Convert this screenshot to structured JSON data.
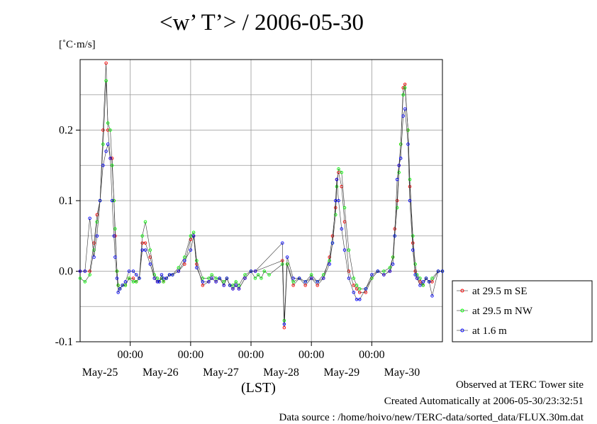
{
  "title": "<w’ T’> / 2006-05-30",
  "unit_label": "[˚C·m/s]",
  "xlabel": "(LST)",
  "footer": {
    "observed": "Observed at TERC Tower site",
    "created": "Created Automatically at 2006-05-30/23:32:51",
    "source": "Data source : /home/hoivo/new/TERC-data/sorted_data/FLUX.30m.dat"
  },
  "colors": {
    "se": "#ff0000",
    "nw": "#00ff00",
    "m16": "#0000ff"
  },
  "chart_data": {
    "type": "line",
    "title": "<w’ T’> / 2006-05-30",
    "ylabel": "[˚C·m/s]",
    "xlabel": "(LST)",
    "x_units": "days since May-25 00:00 (LST)",
    "xlim": [
      -0.83,
      5.17
    ],
    "ylim": [
      -0.1,
      0.3
    ],
    "y_ticks": [
      -0.1,
      0.0,
      0.1,
      0.2
    ],
    "y_tick_labels": [
      "-0.1",
      "0.0",
      "0.1",
      "0.2"
    ],
    "x_ticks": [
      0,
      1,
      2,
      3,
      4
    ],
    "x_tick_labels": [
      "00:00",
      "00:00",
      "00:00",
      "00:00",
      "00:00"
    ],
    "date_positions": [
      -0.5,
      0.5,
      1.5,
      2.5,
      3.5,
      4.5
    ],
    "date_labels": [
      "May-25",
      "May-26",
      "May-27",
      "May-28",
      "May-29",
      "May-30"
    ],
    "grid": true,
    "legend_position": "outside-right",
    "series": [
      {
        "name": "at 29.5 m SE",
        "color": "#ff0000",
        "x": [
          -0.83,
          -0.75,
          -0.67,
          -0.6,
          -0.55,
          -0.5,
          -0.45,
          -0.4,
          -0.37,
          -0.33,
          -0.3,
          -0.27,
          -0.25,
          -0.22,
          -0.2,
          -0.17,
          -0.13,
          -0.08,
          -0.02,
          0.05,
          0.1,
          0.15,
          0.2,
          0.25,
          0.33,
          0.4,
          0.45,
          0.48,
          0.52,
          0.55,
          0.6,
          0.65,
          0.7,
          0.8,
          0.9,
          1.0,
          1.05,
          1.1,
          1.2,
          1.3,
          1.35,
          1.42,
          1.48,
          1.55,
          1.6,
          1.65,
          1.7,
          1.75,
          1.8,
          1.9,
          2.0,
          2.07,
          2.52,
          2.55,
          2.6,
          2.7,
          2.8,
          2.9,
          3.0,
          3.1,
          3.2,
          3.3,
          3.35,
          3.4,
          3.42,
          3.45,
          3.5,
          3.55,
          3.62,
          3.7,
          3.75,
          3.8,
          3.9,
          4.0,
          4.1,
          4.2,
          4.3,
          4.35,
          4.38,
          4.42,
          4.45,
          4.48,
          4.52,
          4.55,
          4.6,
          4.63,
          4.68,
          4.72,
          4.75,
          4.8,
          4.85,
          4.9,
          4.95,
          5.0,
          5.1,
          5.17
        ],
        "y": [
          0.0,
          0.0,
          0.0,
          0.04,
          0.08,
          0.1,
          0.2,
          0.295,
          0.2,
          0.16,
          0.16,
          0.1,
          0.05,
          0.0,
          -0.02,
          -0.025,
          -0.02,
          -0.02,
          -0.01,
          -0.01,
          -0.015,
          -0.01,
          0.04,
          0.04,
          0.02,
          -0.01,
          -0.015,
          -0.015,
          -0.01,
          -0.015,
          -0.01,
          -0.005,
          -0.005,
          0.0,
          0.01,
          0.045,
          0.05,
          0.01,
          -0.02,
          -0.015,
          -0.01,
          -0.015,
          -0.01,
          -0.02,
          -0.01,
          -0.02,
          -0.025,
          -0.02,
          -0.025,
          -0.01,
          0.0,
          0.0,
          0.015,
          -0.08,
          0.01,
          -0.02,
          -0.01,
          -0.02,
          -0.01,
          -0.02,
          -0.01,
          0.02,
          0.05,
          0.09,
          0.13,
          0.14,
          0.12,
          0.07,
          0.0,
          -0.02,
          -0.025,
          -0.03,
          -0.03,
          -0.01,
          0.0,
          -0.005,
          0.0,
          0.02,
          0.06,
          0.1,
          0.15,
          0.18,
          0.26,
          0.265,
          0.2,
          0.12,
          0.04,
          0.0,
          -0.01,
          -0.015,
          -0.02,
          -0.01,
          -0.015,
          -0.015,
          0.0,
          0.0
        ]
      },
      {
        "name": "at 29.5 m NW",
        "color": "#00ff00",
        "x": [
          -0.83,
          -0.75,
          -0.67,
          -0.6,
          -0.55,
          -0.5,
          -0.45,
          -0.4,
          -0.37,
          -0.33,
          -0.3,
          -0.27,
          -0.25,
          -0.22,
          -0.2,
          -0.17,
          -0.13,
          -0.08,
          -0.02,
          0.05,
          0.1,
          0.15,
          0.2,
          0.25,
          0.33,
          0.4,
          0.45,
          0.48,
          0.52,
          0.55,
          0.6,
          0.65,
          0.7,
          0.8,
          0.9,
          1.0,
          1.05,
          1.1,
          1.2,
          1.3,
          1.35,
          1.42,
          1.48,
          1.55,
          1.6,
          1.65,
          1.7,
          1.75,
          1.8,
          1.9,
          2.0,
          2.07,
          2.12,
          2.17,
          2.22,
          2.3,
          2.52,
          2.55,
          2.6,
          2.7,
          2.8,
          2.9,
          3.0,
          3.1,
          3.2,
          3.3,
          3.35,
          3.4,
          3.42,
          3.45,
          3.5,
          3.55,
          3.62,
          3.7,
          3.75,
          3.8,
          3.9,
          4.0,
          4.1,
          4.2,
          4.3,
          4.35,
          4.38,
          4.42,
          4.45,
          4.48,
          4.52,
          4.55,
          4.6,
          4.63,
          4.68,
          4.72,
          4.75,
          4.8,
          4.85,
          4.9,
          4.95,
          5.0,
          5.1,
          5.17
        ],
        "y": [
          -0.01,
          -0.015,
          -0.005,
          0.03,
          0.07,
          0.1,
          0.18,
          0.27,
          0.21,
          0.2,
          0.15,
          0.1,
          0.06,
          0.0,
          -0.02,
          -0.025,
          -0.02,
          -0.02,
          -0.01,
          -0.015,
          -0.015,
          -0.01,
          0.05,
          0.07,
          0.03,
          -0.005,
          -0.01,
          -0.015,
          -0.01,
          -0.015,
          -0.01,
          -0.005,
          -0.005,
          0.005,
          0.02,
          0.05,
          0.055,
          0.015,
          -0.01,
          -0.01,
          -0.005,
          -0.01,
          -0.01,
          -0.015,
          -0.01,
          -0.02,
          -0.02,
          -0.015,
          -0.02,
          -0.005,
          0.0,
          -0.01,
          -0.005,
          -0.01,
          0.0,
          -0.005,
          0.01,
          -0.07,
          0.01,
          -0.015,
          -0.01,
          -0.015,
          -0.005,
          -0.015,
          -0.005,
          0.015,
          0.04,
          0.08,
          0.12,
          0.145,
          0.14,
          0.09,
          0.03,
          -0.01,
          -0.02,
          -0.025,
          -0.025,
          -0.01,
          0.0,
          0.0,
          0.005,
          0.02,
          0.05,
          0.09,
          0.14,
          0.18,
          0.25,
          0.26,
          0.2,
          0.13,
          0.05,
          0.01,
          -0.005,
          -0.01,
          -0.02,
          -0.01,
          -0.015,
          -0.01,
          0.0,
          0.0
        ]
      },
      {
        "name": "at 1.6 m",
        "color": "#0000ff",
        "x": [
          -0.83,
          -0.75,
          -0.67,
          -0.6,
          -0.55,
          -0.5,
          -0.45,
          -0.4,
          -0.37,
          -0.33,
          -0.3,
          -0.27,
          -0.25,
          -0.22,
          -0.2,
          -0.17,
          -0.13,
          -0.08,
          -0.02,
          0.05,
          0.1,
          0.15,
          0.2,
          0.25,
          0.33,
          0.4,
          0.45,
          0.48,
          0.52,
          0.55,
          0.6,
          0.65,
          0.7,
          0.8,
          0.9,
          1.0,
          1.05,
          1.1,
          1.2,
          1.3,
          1.35,
          1.42,
          1.48,
          1.55,
          1.6,
          1.65,
          1.7,
          1.75,
          1.8,
          1.9,
          2.0,
          2.07,
          2.52,
          2.55,
          2.6,
          2.7,
          2.8,
          2.9,
          3.0,
          3.1,
          3.2,
          3.3,
          3.35,
          3.4,
          3.42,
          3.45,
          3.5,
          3.55,
          3.62,
          3.7,
          3.75,
          3.8,
          3.9,
          4.0,
          4.1,
          4.2,
          4.3,
          4.35,
          4.38,
          4.42,
          4.45,
          4.48,
          4.52,
          4.55,
          4.6,
          4.63,
          4.68,
          4.72,
          4.75,
          4.8,
          4.85,
          4.9,
          4.95,
          5.0,
          5.1,
          5.17
        ],
        "y": [
          0.0,
          0.0,
          0.075,
          0.02,
          0.05,
          0.1,
          0.15,
          0.17,
          0.18,
          0.16,
          0.1,
          0.05,
          0.02,
          -0.01,
          -0.03,
          -0.025,
          -0.02,
          -0.015,
          0.0,
          0.0,
          -0.005,
          -0.01,
          0.03,
          0.03,
          0.01,
          -0.01,
          -0.015,
          -0.015,
          -0.005,
          -0.01,
          -0.01,
          -0.005,
          -0.005,
          0.0,
          0.015,
          0.03,
          0.05,
          0.005,
          -0.015,
          -0.015,
          -0.01,
          -0.015,
          -0.01,
          -0.02,
          -0.01,
          -0.02,
          -0.025,
          -0.02,
          -0.025,
          -0.01,
          0.0,
          0.0,
          0.04,
          -0.075,
          0.02,
          -0.01,
          -0.01,
          -0.015,
          -0.01,
          -0.015,
          -0.01,
          0.01,
          0.04,
          0.1,
          0.13,
          0.1,
          0.06,
          0.03,
          -0.01,
          -0.03,
          -0.04,
          -0.04,
          -0.025,
          -0.005,
          0.0,
          -0.005,
          0.0,
          0.01,
          0.05,
          0.13,
          0.15,
          0.16,
          0.22,
          0.23,
          0.18,
          0.1,
          0.03,
          -0.005,
          -0.01,
          -0.02,
          -0.015,
          -0.01,
          -0.015,
          -0.035,
          0.0,
          0.0
        ]
      }
    ]
  }
}
